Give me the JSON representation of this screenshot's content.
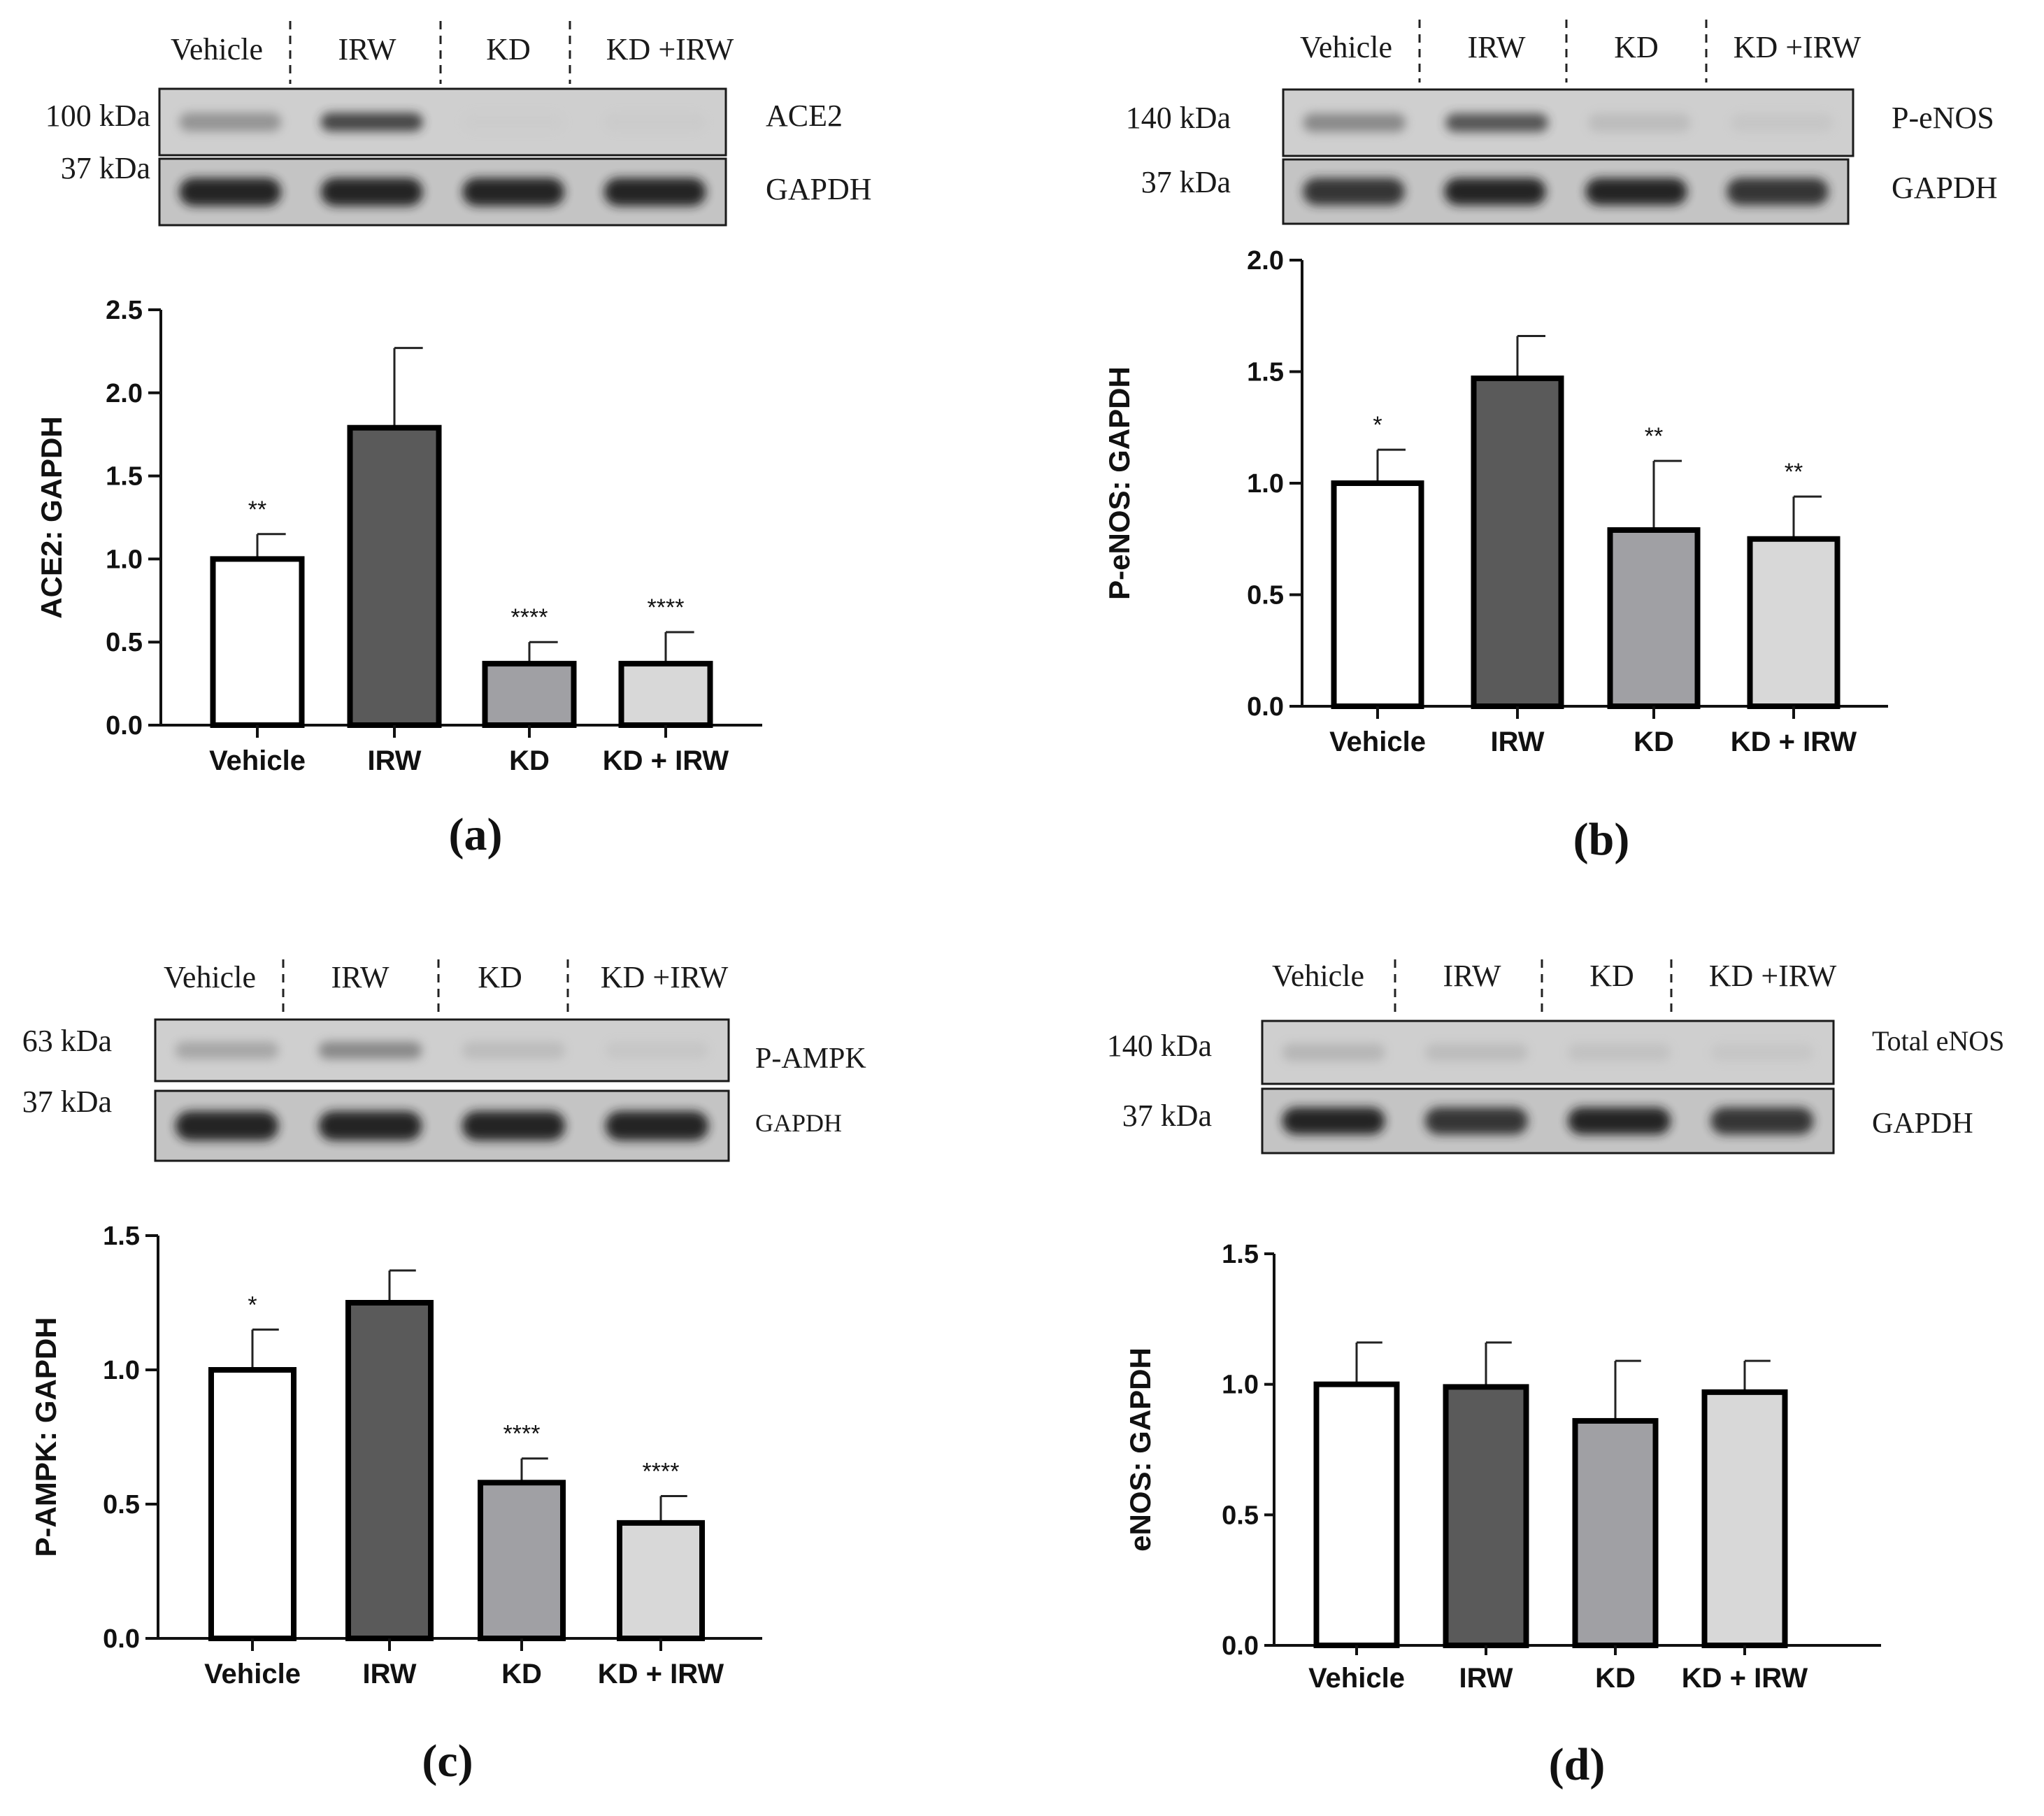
{
  "figure": {
    "panels": [
      {
        "id": "a",
        "label": "(a)",
        "blot": {
          "lanes": [
            "Vehicle",
            "IRW",
            "KD",
            "KD +IRW"
          ],
          "rows": [
            {
              "marker": "100 kDa",
              "protein": "ACE2",
              "intensity": [
                0.55,
                0.85,
                0.05,
                0.1
              ]
            },
            {
              "marker": "37 kDa",
              "protein": "GAPDH",
              "intensity": [
                0.95,
                0.95,
                0.95,
                0.95
              ]
            }
          ]
        },
        "chart_data": {
          "type": "bar",
          "ylabel": "ACE2: GAPDH",
          "categories": [
            "Vehicle",
            "IRW",
            "KD",
            "KD + IRW"
          ],
          "values": [
            1.0,
            1.79,
            0.37,
            0.37
          ],
          "errors": [
            0.15,
            0.48,
            0.13,
            0.19
          ],
          "significance": [
            "**",
            "",
            "****",
            "****"
          ],
          "ylim": [
            0,
            2.5
          ],
          "yticks": [
            "0.0",
            "0.5",
            "1.0",
            "1.5",
            "2.0",
            "2.5"
          ],
          "colors": [
            "#ffffff",
            "#5a5a5a",
            "#a0a0a4",
            "#d8d8d8"
          ]
        }
      },
      {
        "id": "b",
        "label": "(b)",
        "blot": {
          "lanes": [
            "Vehicle",
            "IRW",
            "KD",
            "KD +IRW"
          ],
          "rows": [
            {
              "marker": "140 kDa",
              "protein": "P-eNOS",
              "intensity": [
                0.6,
                0.8,
                0.3,
                0.2
              ]
            },
            {
              "marker": "37 kDa",
              "protein": "GAPDH",
              "intensity": [
                0.9,
                0.95,
                0.95,
                0.9
              ]
            }
          ]
        },
        "chart_data": {
          "type": "bar",
          "ylabel": "P-eNOS: GAPDH",
          "categories": [
            "Vehicle",
            "IRW",
            "KD",
            "KD + IRW"
          ],
          "values": [
            1.0,
            1.47,
            0.79,
            0.75
          ],
          "errors": [
            0.15,
            0.19,
            0.31,
            0.19
          ],
          "significance": [
            "*",
            "",
            "**",
            "**"
          ],
          "ylim": [
            0,
            2.0
          ],
          "yticks": [
            "0.0",
            "0.5",
            "1.0",
            "1.5",
            "2.0"
          ],
          "colors": [
            "#ffffff",
            "#5a5a5a",
            "#a0a0a4",
            "#d8d8d8"
          ]
        }
      },
      {
        "id": "c",
        "label": "(c)",
        "blot": {
          "lanes": [
            "Vehicle",
            "IRW",
            "KD",
            "KD +IRW"
          ],
          "rows": [
            {
              "marker": "63 kDa",
              "protein": "P-AMPK",
              "intensity": [
                0.45,
                0.6,
                0.3,
                0.2
              ]
            },
            {
              "marker": "37 kDa",
              "protein": "GAPDH",
              "intensity": [
                0.95,
                0.95,
                0.95,
                0.95
              ]
            }
          ]
        },
        "chart_data": {
          "type": "bar",
          "ylabel": "P-AMPK: GAPDH",
          "categories": [
            "Vehicle",
            "IRW",
            "KD",
            "KD + IRW"
          ],
          "values": [
            1.0,
            1.25,
            0.58,
            0.43
          ],
          "errors": [
            0.15,
            0.12,
            0.09,
            0.1
          ],
          "significance": [
            "*",
            "",
            "****",
            "****"
          ],
          "ylim": [
            0,
            1.5
          ],
          "yticks": [
            "0.0",
            "0.5",
            "1.0",
            "1.5"
          ],
          "colors": [
            "#ffffff",
            "#5a5a5a",
            "#a0a0a4",
            "#d8d8d8"
          ]
        }
      },
      {
        "id": "d",
        "label": "(d)",
        "blot": {
          "lanes": [
            "Vehicle",
            "IRW",
            "KD",
            "KD +IRW"
          ],
          "rows": [
            {
              "marker": "140 kDa",
              "protein": "Total eNOS",
              "intensity": [
                0.35,
                0.3,
                0.25,
                0.2
              ]
            },
            {
              "marker": "37 kDa",
              "protein": "GAPDH",
              "intensity": [
                0.95,
                0.9,
                0.95,
                0.9
              ]
            }
          ]
        },
        "chart_data": {
          "type": "bar",
          "ylabel": "eNOS: GAPDH",
          "categories": [
            "Vehicle",
            "IRW",
            "KD",
            "KD + IRW"
          ],
          "values": [
            1.0,
            0.99,
            0.86,
            0.97
          ],
          "errors": [
            0.16,
            0.17,
            0.23,
            0.12
          ],
          "significance": [
            "",
            "",
            "",
            ""
          ],
          "ylim": [
            0,
            1.5
          ],
          "yticks": [
            "0.0",
            "0.5",
            "1.0",
            "1.5"
          ],
          "colors": [
            "#ffffff",
            "#5a5a5a",
            "#a0a0a4",
            "#d8d8d8"
          ]
        }
      }
    ]
  }
}
